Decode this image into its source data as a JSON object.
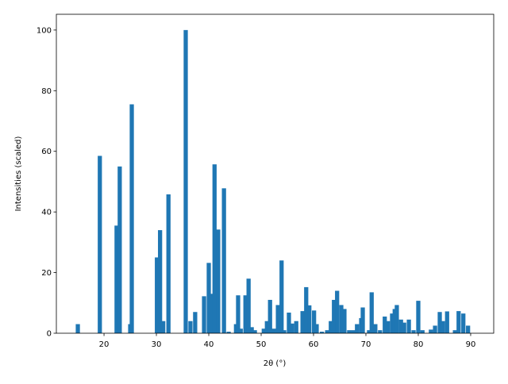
{
  "chart_data": {
    "type": "bar",
    "x_label": "2θ (°)",
    "y_label": "Intensities (scaled)",
    "color": "#1f77b4",
    "x": [
      15.0,
      19.2,
      22.4,
      23.0,
      25.0,
      25.3,
      30.1,
      30.7,
      31.3,
      32.3,
      35.6,
      36.5,
      37.4,
      39.1,
      40.0,
      40.5,
      41.1,
      41.8,
      42.9,
      43.8,
      45.2,
      45.6,
      46.1,
      47.0,
      47.6,
      48.2,
      48.8,
      50.5,
      51.1,
      51.7,
      52.4,
      53.2,
      53.9,
      54.4,
      55.3,
      55.9,
      56.7,
      57.9,
      58.6,
      59.2,
      60.1,
      60.6,
      61.6,
      62.6,
      63.3,
      63.9,
      64.5,
      65.3,
      65.9,
      66.8,
      67.6,
      68.3,
      69.1,
      69.4,
      70.6,
      71.1,
      71.8,
      72.7,
      73.6,
      74.2,
      75.0,
      75.5,
      75.9,
      76.7,
      77.3,
      78.2,
      79.1,
      80.0,
      80.8,
      82.4,
      83.2,
      84.1,
      84.7,
      85.5,
      87.0,
      87.7,
      88.6,
      89.5
    ],
    "values": [
      3,
      58.5,
      35.5,
      55,
      3,
      75.5,
      25,
      34,
      4,
      45.8,
      100,
      4,
      7,
      12.2,
      23.2,
      13,
      55.7,
      34.2,
      47.8,
      0.5,
      3,
      12.5,
      1.5,
      12.5,
      18,
      2,
      1,
      1.5,
      4,
      11,
      1.5,
      9.3,
      24,
      1,
      6.8,
      3.2,
      4,
      7.3,
      15.2,
      9.2,
      7.5,
      3,
      0.5,
      1,
      4,
      11,
      14,
      9.3,
      8,
      1,
      1,
      3,
      5,
      8.5,
      1,
      13.5,
      3,
      1,
      5.5,
      4,
      6.5,
      8,
      9.3,
      4.5,
      3.5,
      4.5,
      1,
      10.7,
      1,
      1.2,
      2.5,
      7,
      4,
      7.2,
      1,
      7.3,
      6.5,
      2.5
    ],
    "xlim": [
      10.9,
      94.4
    ],
    "ylim": [
      0,
      105.2
    ],
    "xticks": [
      20,
      30,
      40,
      50,
      60,
      70,
      80,
      90
    ],
    "yticks": [
      0,
      20,
      40,
      60,
      80,
      100
    ]
  }
}
